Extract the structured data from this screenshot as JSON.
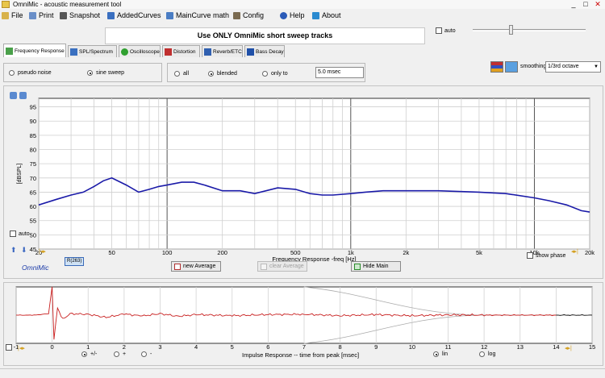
{
  "window": {
    "title": "OmniMic - acoustic measurement tool",
    "controls": [
      "_",
      "□",
      "✕"
    ]
  },
  "menu": [
    {
      "label": "File",
      "icon": "folder-icon",
      "color": "#d8b24a"
    },
    {
      "label": "Print",
      "icon": "printer-icon",
      "color": "#6a8fc8"
    },
    {
      "label": "Snapshot",
      "icon": "camera-icon",
      "color": "#555555"
    },
    {
      "label": "AddedCurves",
      "icon": "curves-icon",
      "color": "#3a6fc0"
    },
    {
      "label": "MainCurve math",
      "icon": "math-icon",
      "color": "#4a7dc4"
    },
    {
      "label": "Config",
      "icon": "wrench-icon",
      "color": "#7a6a50"
    },
    {
      "label": "Help",
      "icon": "help-icon",
      "color": "#2a5ab8"
    },
    {
      "label": "About",
      "icon": "about-icon",
      "color": "#2a8ad0"
    }
  ],
  "banner": "Use ONLY OmniMic short sweep tracks",
  "auto_label": "auto",
  "tabs": [
    {
      "label": "Frequency Response",
      "icon": "freq-response-icon",
      "color": "#4aa04a",
      "active": true
    },
    {
      "label": "SPL/Spectrum",
      "icon": "spl-icon",
      "color": "#3a70c0",
      "active": false
    },
    {
      "label": "Oscilloscope",
      "icon": "oscilloscope-icon",
      "color": "#30a030",
      "active": false
    },
    {
      "label": "Distortion",
      "icon": "distortion-icon",
      "color": "#c03030",
      "active": false
    },
    {
      "label": "Reverb/ETC",
      "icon": "reverb-icon",
      "color": "#3060b0",
      "active": false
    },
    {
      "label": "Bass Decay",
      "icon": "bass-decay-icon",
      "color": "#2050a8",
      "active": false
    }
  ],
  "signal": {
    "options": [
      "pseudo noise",
      "sine sweep"
    ],
    "selected": "sine sweep"
  },
  "gating": {
    "options": [
      "all",
      "blended",
      "only to"
    ],
    "selected": "blended",
    "value": "5.0 msec"
  },
  "smoothing": {
    "label": "smoothing",
    "value": "1/3rd octave"
  },
  "freq_chart": {
    "y_ticks": [
      "95",
      "90",
      "85",
      "80",
      "75",
      "70",
      "65",
      "60",
      "55",
      "50",
      "45"
    ],
    "y_label": "[dBSPL]",
    "x_ticks": [
      "20",
      "50",
      "100",
      "200",
      "500",
      "1k",
      "2k",
      "5k",
      "10k",
      "20k"
    ],
    "x_label": "Frequency Response  -freq [Hz]",
    "auto_label": "auto",
    "brand": "OmniMic",
    "file_tag": "R(263)",
    "show_phase": "show phase",
    "line_color": "#1a1aa8"
  },
  "buttons": {
    "new_average": "new Average",
    "clear_average": "clear Average",
    "hide_main": "Hide Main"
  },
  "chart_data": [
    {
      "type": "line",
      "title": "",
      "xlabel": "Frequency Response  -freq [Hz]",
      "ylabel": "[dBSPL]",
      "xscale": "log",
      "xlim": [
        20,
        20000
      ],
      "ylim": [
        45,
        98
      ],
      "grid": true,
      "series": [
        {
          "x": [
            20,
            25,
            30,
            35,
            40,
            45,
            50,
            60,
            70,
            80,
            90,
            100,
            120,
            140,
            160,
            200,
            250,
            300,
            400,
            500,
            600,
            700,
            800,
            1000,
            1200,
            1500,
            2000,
            3000,
            5000,
            7000,
            10000,
            12000,
            15000,
            18000,
            20000
          ],
          "y": [
            60.5,
            62.5,
            64,
            65,
            67,
            69,
            70,
            67.5,
            65,
            66,
            67,
            67.5,
            68.5,
            68.5,
            67.5,
            65.5,
            65.5,
            64.5,
            66.5,
            66,
            64.5,
            64,
            64,
            64.5,
            65,
            65.5,
            65.5,
            65.5,
            65,
            64.5,
            63,
            62,
            60.5,
            58.5,
            58
          ]
        }
      ]
    },
    {
      "type": "line",
      "title": "",
      "xlabel": "Impulse Response  -- time from peak [msec]",
      "ylabel": "",
      "xlim": [
        -1,
        15
      ],
      "x_ticks": [
        "-1",
        "0",
        "1",
        "2",
        "3",
        "4",
        "5",
        "6",
        "7",
        "8",
        "9",
        "10",
        "11",
        "12",
        "13",
        "14",
        "15"
      ],
      "grid": true,
      "series": [
        {
          "x": [
            -1,
            -0.5,
            -0.1,
            0,
            0.05,
            0.15,
            0.3,
            0.5,
            1,
            1.5,
            2,
            2.5,
            3,
            3.5,
            4,
            5,
            6,
            7,
            8,
            9,
            10,
            11,
            12,
            13,
            14,
            15
          ],
          "y": [
            0,
            0,
            0.05,
            1,
            -0.85,
            0.25,
            -0.15,
            0.05,
            0.03,
            -0.08,
            0.04,
            -0.03,
            0.05,
            -0.04,
            0.02,
            -0.02,
            0.02,
            0.03,
            -0.02,
            0.02,
            -0.02,
            0.01,
            0,
            0,
            0,
            0
          ]
        }
      ]
    }
  ],
  "impulse": {
    "x_label": "Impulse Response  -- time from peak [msec]",
    "polarity": {
      "options": [
        "+/-",
        "+",
        "-"
      ],
      "selected": "+/-"
    },
    "scale": {
      "options": [
        "lin",
        "log"
      ],
      "selected": "lin"
    },
    "line_color": "#c81e1e",
    "tail_color": "#1a1a1a"
  }
}
